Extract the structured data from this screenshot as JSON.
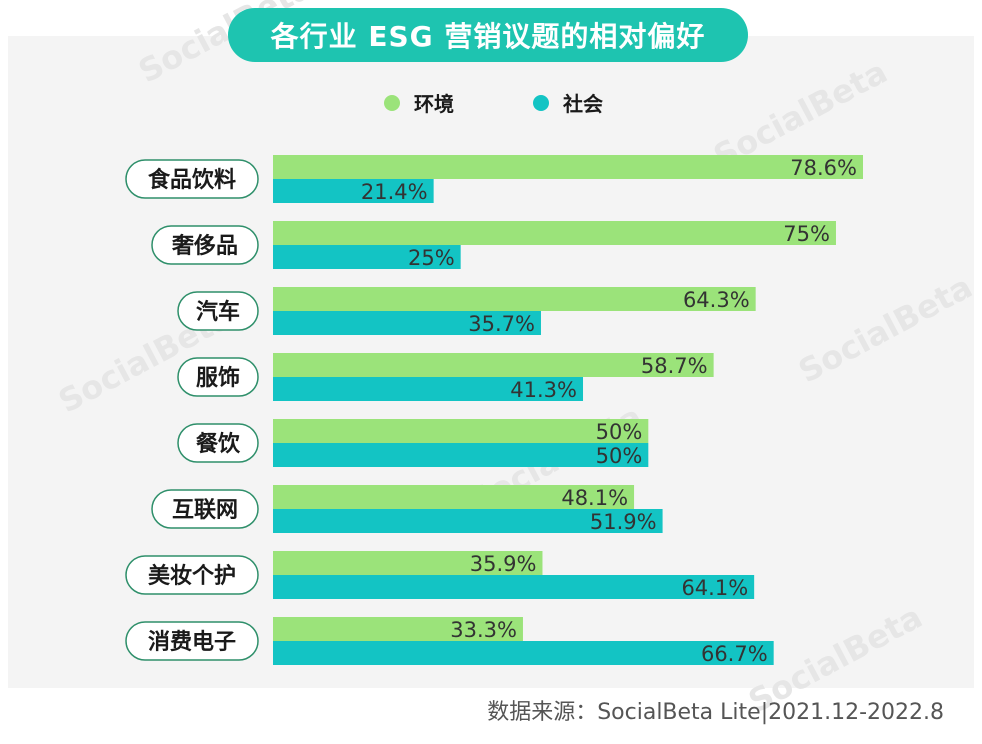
{
  "page": {
    "title": "各行业 ESG 营销议题的相对偏好",
    "source": "数据来源：SocialBeta Lite|2021.12-2022.8",
    "watermark": "SocialBeta"
  },
  "chart_data": {
    "type": "bar",
    "orientation": "horizontal",
    "title": "各行业 ESG 营销议题的相对偏好",
    "categories": [
      "食品饮料",
      "奢侈品",
      "汽车",
      "服饰",
      "餐饮",
      "互联网",
      "美妆个护",
      "消费电子"
    ],
    "series": [
      {
        "name": "环境",
        "color": "#9be37a",
        "values": [
          78.6,
          75,
          64.3,
          58.7,
          50,
          48.1,
          35.9,
          33.3
        ],
        "labels": [
          "78.6%",
          "75%",
          "64.3%",
          "58.7%",
          "50%",
          "48.1%",
          "35.9%",
          "33.3%"
        ]
      },
      {
        "name": "社会",
        "color": "#13c4c4",
        "values": [
          21.4,
          25,
          35.7,
          41.3,
          50,
          51.9,
          64.1,
          66.7
        ],
        "labels": [
          "21.4%",
          "25%",
          "35.7%",
          "41.3%",
          "50%",
          "51.9%",
          "64.1%",
          "66.7%"
        ]
      }
    ],
    "xlim": [
      0,
      100
    ],
    "grid": false,
    "legend": "top-center"
  }
}
